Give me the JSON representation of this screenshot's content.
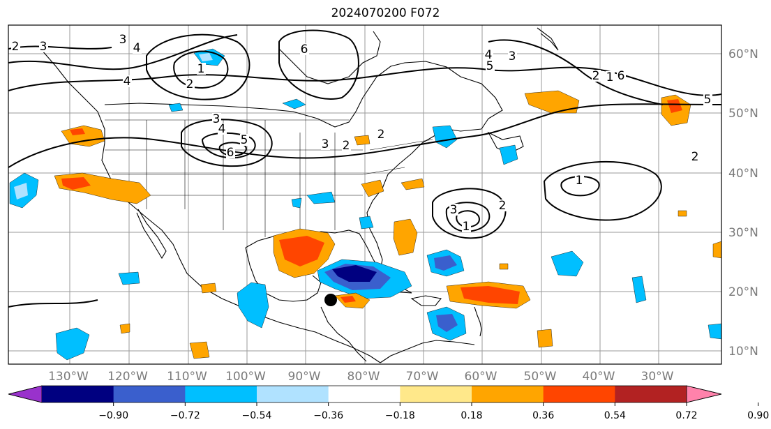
{
  "title": "2024070200 F072",
  "longitude_labels": [
    "130°W",
    "120°W",
    "110°W",
    "100°W",
    "90°W",
    "80°W",
    "70°W",
    "60°W",
    "50°W",
    "40°W",
    "30°W"
  ],
  "latitude_labels": [
    "60°N",
    "50°N",
    "40°N",
    "30°N",
    "20°N",
    "10°N"
  ],
  "colorbar": {
    "ticks": [
      "−0.90",
      "−0.72",
      "−0.54",
      "−0.36",
      "−0.18",
      "0.18",
      "0.36",
      "0.54",
      "0.72",
      "0.90"
    ],
    "colors": [
      "#9932cc",
      "#000080",
      "#3a5fcd",
      "#00bfff",
      "#b0e2ff",
      "#ffffff",
      "#ffe88a",
      "#ffa500",
      "#ff4500",
      "#b22222",
      "#ff82ab"
    ]
  },
  "contour_labels": [
    "2",
    "3",
    "4",
    "1",
    "2",
    "3",
    "4",
    "5",
    "6",
    "6",
    "5",
    "4",
    "3",
    "2",
    "1",
    "2",
    "3",
    "6",
    "5",
    "4",
    "3",
    "2",
    "1",
    "2",
    "3",
    "1",
    "2"
  ],
  "marker": {
    "name": "storm-center",
    "color": "#000000"
  }
}
